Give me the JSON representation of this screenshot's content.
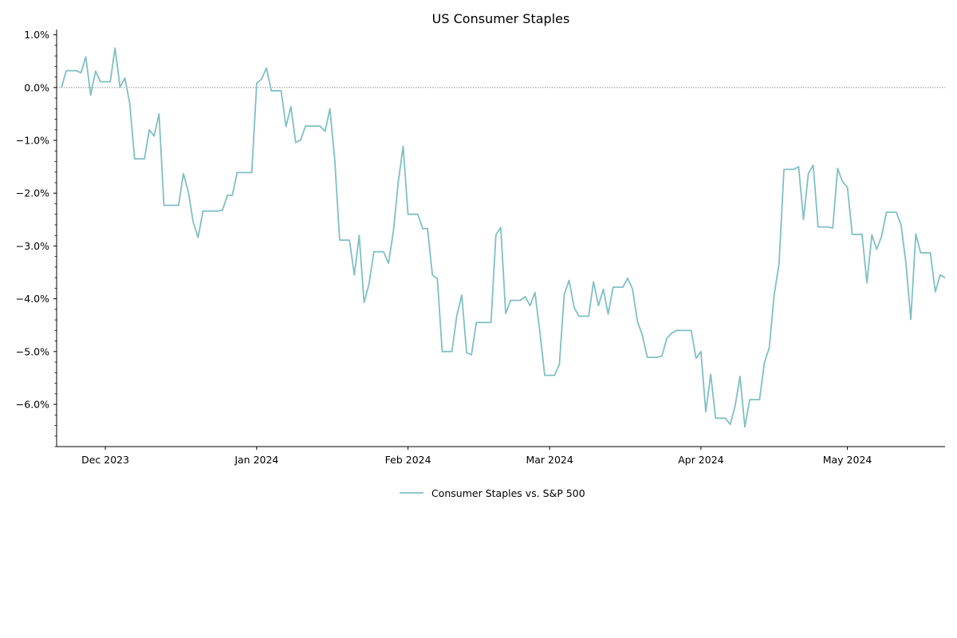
{
  "chart_data": {
    "type": "line",
    "title": "US Consumer Staples",
    "xlabel": "",
    "ylabel": "",
    "y_format": "percent",
    "ylim": [
      -6.8,
      1.1
    ],
    "xlim": [
      "2023-11-22",
      "2024-05-21"
    ],
    "y_ticks": [
      1.0,
      0.0,
      -1.0,
      -2.0,
      -3.0,
      -4.0,
      -5.0,
      -6.0
    ],
    "y_tick_labels": [
      "1.0%",
      "0.0%",
      "−1.0%",
      "−2.0%",
      "−3.0%",
      "−4.0%",
      "−5.0%",
      "−6.0%"
    ],
    "x_ticks": [
      "2023-12-01",
      "2024-01-01",
      "2024-02-01",
      "2024-03-01",
      "2024-04-01",
      "2024-05-01"
    ],
    "x_tick_labels": [
      "Dec 2023",
      "Jan 2024",
      "Feb 2024",
      "Mar 2024",
      "Apr 2024",
      "May 2024"
    ],
    "reference_line": {
      "y": 0,
      "style": "dotted",
      "color": "#888888"
    },
    "legend_position": "bottom-center",
    "series": [
      {
        "name": "Consumer Staples vs. S&P 500",
        "color": "#7fbfc4",
        "points": [
          [
            "2023-11-22",
            0.0
          ],
          [
            "2023-11-23",
            0.32
          ],
          [
            "2023-11-24",
            0.32
          ],
          [
            "2023-11-25",
            0.32
          ],
          [
            "2023-11-26",
            0.28
          ],
          [
            "2023-11-27",
            0.58
          ],
          [
            "2023-11-28",
            -0.14
          ],
          [
            "2023-11-29",
            0.31
          ],
          [
            "2023-11-30",
            0.11
          ],
          [
            "2023-12-01",
            0.11
          ],
          [
            "2023-12-02",
            0.11
          ],
          [
            "2023-12-03",
            0.75
          ],
          [
            "2023-12-04",
            0.01
          ],
          [
            "2023-12-05",
            0.18
          ],
          [
            "2023-12-06",
            -0.3
          ],
          [
            "2023-12-07",
            -1.35
          ],
          [
            "2023-12-08",
            -1.35
          ],
          [
            "2023-12-09",
            -1.35
          ],
          [
            "2023-12-10",
            -0.8
          ],
          [
            "2023-12-11",
            -0.92
          ],
          [
            "2023-12-12",
            -0.5
          ],
          [
            "2023-12-13",
            -2.23
          ],
          [
            "2023-12-14",
            -2.23
          ],
          [
            "2023-12-15",
            -2.23
          ],
          [
            "2023-12-16",
            -2.23
          ],
          [
            "2023-12-17",
            -1.63
          ],
          [
            "2023-12-18",
            -1.98
          ],
          [
            "2023-12-19",
            -2.55
          ],
          [
            "2023-12-20",
            -2.84
          ],
          [
            "2023-12-21",
            -2.34
          ],
          [
            "2023-12-22",
            -2.34
          ],
          [
            "2023-12-23",
            -2.34
          ],
          [
            "2023-12-24",
            -2.34
          ],
          [
            "2023-12-25",
            -2.32
          ],
          [
            "2023-12-26",
            -2.04
          ],
          [
            "2023-12-27",
            -2.04
          ],
          [
            "2023-12-28",
            -1.61
          ],
          [
            "2023-12-29",
            -1.61
          ],
          [
            "2023-12-30",
            -1.61
          ],
          [
            "2023-12-31",
            -1.61
          ],
          [
            "2024-01-01",
            0.08
          ],
          [
            "2024-01-02",
            0.16
          ],
          [
            "2024-01-03",
            0.37
          ],
          [
            "2024-01-04",
            -0.06
          ],
          [
            "2024-01-05",
            -0.06
          ],
          [
            "2024-01-06",
            -0.06
          ],
          [
            "2024-01-07",
            -0.74
          ],
          [
            "2024-01-08",
            -0.36
          ],
          [
            "2024-01-09",
            -1.04
          ],
          [
            "2024-01-10",
            -0.99
          ],
          [
            "2024-01-11",
            -0.73
          ],
          [
            "2024-01-12",
            -0.73
          ],
          [
            "2024-01-13",
            -0.73
          ],
          [
            "2024-01-14",
            -0.73
          ],
          [
            "2024-01-15",
            -0.83
          ],
          [
            "2024-01-16",
            -0.4
          ],
          [
            "2024-01-17",
            -1.38
          ],
          [
            "2024-01-18",
            -2.89
          ],
          [
            "2024-01-19",
            -2.89
          ],
          [
            "2024-01-20",
            -2.89
          ],
          [
            "2024-01-21",
            -3.55
          ],
          [
            "2024-01-22",
            -2.8
          ],
          [
            "2024-01-23",
            -4.07
          ],
          [
            "2024-01-24",
            -3.72
          ],
          [
            "2024-01-25",
            -3.11
          ],
          [
            "2024-01-26",
            -3.11
          ],
          [
            "2024-01-27",
            -3.11
          ],
          [
            "2024-01-28",
            -3.33
          ],
          [
            "2024-01-29",
            -2.72
          ],
          [
            "2024-01-30",
            -1.79
          ],
          [
            "2024-01-31",
            -1.11
          ],
          [
            "2024-02-01",
            -2.4
          ],
          [
            "2024-02-02",
            -2.4
          ],
          [
            "2024-02-03",
            -2.4
          ],
          [
            "2024-02-04",
            -2.67
          ],
          [
            "2024-02-05",
            -2.67
          ],
          [
            "2024-02-06",
            -3.55
          ],
          [
            "2024-02-07",
            -3.62
          ],
          [
            "2024-02-08",
            -5.0
          ],
          [
            "2024-02-09",
            -5.0
          ],
          [
            "2024-02-10",
            -5.0
          ],
          [
            "2024-02-11",
            -4.32
          ],
          [
            "2024-02-12",
            -3.93
          ],
          [
            "2024-02-13",
            -5.02
          ],
          [
            "2024-02-14",
            -5.06
          ],
          [
            "2024-02-15",
            -4.45
          ],
          [
            "2024-02-16",
            -4.45
          ],
          [
            "2024-02-17",
            -4.45
          ],
          [
            "2024-02-18",
            -4.45
          ],
          [
            "2024-02-19",
            -2.79
          ],
          [
            "2024-02-20",
            -2.65
          ],
          [
            "2024-02-21",
            -4.28
          ],
          [
            "2024-02-22",
            -4.03
          ],
          [
            "2024-02-23",
            -4.03
          ],
          [
            "2024-02-24",
            -4.03
          ],
          [
            "2024-02-25",
            -3.96
          ],
          [
            "2024-02-26",
            -4.13
          ],
          [
            "2024-02-27",
            -3.88
          ],
          [
            "2024-02-28",
            -4.62
          ],
          [
            "2024-02-29",
            -5.45
          ],
          [
            "2024-03-01",
            -5.45
          ],
          [
            "2024-03-02",
            -5.45
          ],
          [
            "2024-03-03",
            -5.24
          ],
          [
            "2024-03-04",
            -3.92
          ],
          [
            "2024-03-05",
            -3.65
          ],
          [
            "2024-03-06",
            -4.16
          ],
          [
            "2024-03-07",
            -4.33
          ],
          [
            "2024-03-08",
            -4.33
          ],
          [
            "2024-03-09",
            -4.33
          ],
          [
            "2024-03-10",
            -3.68
          ],
          [
            "2024-03-11",
            -4.13
          ],
          [
            "2024-03-12",
            -3.82
          ],
          [
            "2024-03-13",
            -4.29
          ],
          [
            "2024-03-14",
            -3.78
          ],
          [
            "2024-03-15",
            -3.78
          ],
          [
            "2024-03-16",
            -3.78
          ],
          [
            "2024-03-17",
            -3.61
          ],
          [
            "2024-03-18",
            -3.82
          ],
          [
            "2024-03-19",
            -4.43
          ],
          [
            "2024-03-20",
            -4.69
          ],
          [
            "2024-03-21",
            -5.11
          ],
          [
            "2024-03-22",
            -5.11
          ],
          [
            "2024-03-23",
            -5.11
          ],
          [
            "2024-03-24",
            -5.08
          ],
          [
            "2024-03-25",
            -4.75
          ],
          [
            "2024-03-26",
            -4.65
          ],
          [
            "2024-03-27",
            -4.6
          ],
          [
            "2024-03-28",
            -4.6
          ],
          [
            "2024-03-29",
            -4.6
          ],
          [
            "2024-03-30",
            -4.6
          ],
          [
            "2024-03-31",
            -5.13
          ],
          [
            "2024-04-01",
            -5.0
          ],
          [
            "2024-04-02",
            -6.14
          ],
          [
            "2024-04-03",
            -5.43
          ],
          [
            "2024-04-04",
            -6.26
          ],
          [
            "2024-04-05",
            -6.26
          ],
          [
            "2024-04-06",
            -6.26
          ],
          [
            "2024-04-07",
            -6.38
          ],
          [
            "2024-04-08",
            -6.03
          ],
          [
            "2024-04-09",
            -5.47
          ],
          [
            "2024-04-10",
            -6.43
          ],
          [
            "2024-04-11",
            -5.91
          ],
          [
            "2024-04-12",
            -5.91
          ],
          [
            "2024-04-13",
            -5.91
          ],
          [
            "2024-04-14",
            -5.21
          ],
          [
            "2024-04-15",
            -4.93
          ],
          [
            "2024-04-16",
            -3.93
          ],
          [
            "2024-04-17",
            -3.33
          ],
          [
            "2024-04-18",
            -1.55
          ],
          [
            "2024-04-19",
            -1.55
          ],
          [
            "2024-04-20",
            -1.55
          ],
          [
            "2024-04-21",
            -1.5
          ],
          [
            "2024-04-22",
            -2.5
          ],
          [
            "2024-04-23",
            -1.63
          ],
          [
            "2024-04-24",
            -1.47
          ],
          [
            "2024-04-25",
            -2.64
          ],
          [
            "2024-04-26",
            -2.64
          ],
          [
            "2024-04-27",
            -2.64
          ],
          [
            "2024-04-28",
            -2.66
          ],
          [
            "2024-04-29",
            -1.53
          ],
          [
            "2024-04-30",
            -1.78
          ],
          [
            "2024-05-01",
            -1.89
          ],
          [
            "2024-05-02",
            -2.78
          ],
          [
            "2024-05-03",
            -2.78
          ],
          [
            "2024-05-04",
            -2.78
          ],
          [
            "2024-05-05",
            -3.7
          ],
          [
            "2024-05-06",
            -2.79
          ],
          [
            "2024-05-07",
            -3.06
          ],
          [
            "2024-05-08",
            -2.82
          ],
          [
            "2024-05-09",
            -2.36
          ],
          [
            "2024-05-10",
            -2.36
          ],
          [
            "2024-05-11",
            -2.36
          ],
          [
            "2024-05-12",
            -2.6
          ],
          [
            "2024-05-13",
            -3.33
          ],
          [
            "2024-05-14",
            -4.39
          ],
          [
            "2024-05-15",
            -2.77
          ],
          [
            "2024-05-16",
            -3.13
          ],
          [
            "2024-05-17",
            -3.13
          ],
          [
            "2024-05-18",
            -3.13
          ],
          [
            "2024-05-19",
            -3.87
          ],
          [
            "2024-05-20",
            -3.55
          ],
          [
            "2024-05-21",
            -3.6
          ]
        ]
      }
    ]
  }
}
